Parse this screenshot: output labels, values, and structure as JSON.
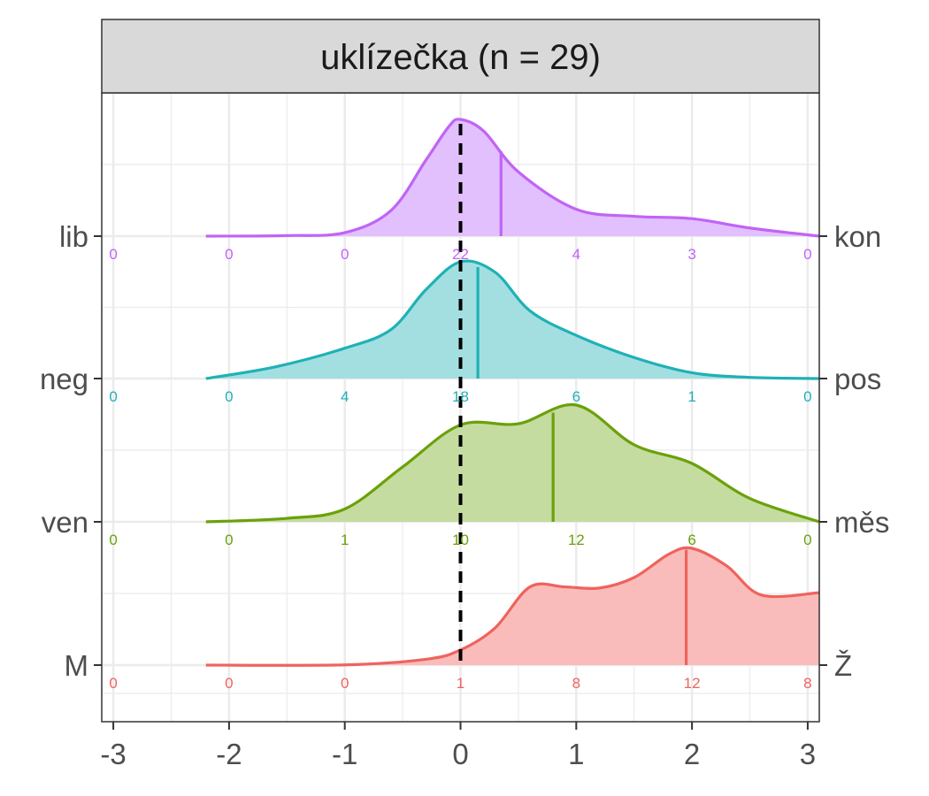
{
  "chart_data": {
    "type": "ridgeline",
    "title": "",
    "facet_label": "uklízečka (n = 29)",
    "xlim": [
      -3.1,
      3.1
    ],
    "x_ticks": [
      -3,
      -2,
      -1,
      0,
      1,
      2,
      3
    ],
    "x_tick_labels": [
      "-3",
      "-2",
      "-1",
      "0",
      "1",
      "2",
      "3"
    ],
    "reference_line_x": 0,
    "grid": true,
    "series": [
      {
        "left_label": "lib",
        "right_label": "kon",
        "color": "#C064F5",
        "fill": "#E2BFFD",
        "median_x": 0.35,
        "density_x": [
          -2.2,
          -1.5,
          -1.0,
          -0.6,
          -0.3,
          -0.1,
          0.0,
          0.2,
          0.5,
          1.0,
          1.5,
          2.0,
          2.5,
          3.1
        ],
        "density_y": [
          0.0,
          0.005,
          0.03,
          0.22,
          0.65,
          0.94,
          1.0,
          0.9,
          0.55,
          0.23,
          0.17,
          0.15,
          0.07,
          0.0
        ],
        "count_x": [
          -3,
          -2,
          -1,
          0,
          1,
          2,
          3
        ],
        "counts": [
          "0",
          "0",
          "0",
          "22",
          "4",
          "3",
          "0"
        ]
      },
      {
        "left_label": "neg",
        "right_label": "pos",
        "color": "#1FB1B6",
        "fill": "#A3DFE1",
        "median_x": 0.15,
        "density_x": [
          -2.2,
          -1.6,
          -1.0,
          -0.6,
          -0.3,
          0.0,
          0.3,
          0.6,
          1.0,
          1.5,
          2.0,
          2.5,
          3.1
        ],
        "density_y": [
          0.0,
          0.1,
          0.26,
          0.42,
          0.76,
          1.0,
          0.91,
          0.58,
          0.37,
          0.18,
          0.05,
          0.01,
          0.0
        ],
        "count_x": [
          -3,
          -2,
          -1,
          0,
          1,
          2,
          3
        ],
        "counts": [
          "0",
          "0",
          "4",
          "18",
          "6",
          "1",
          "0"
        ]
      },
      {
        "left_label": "ven",
        "right_label": "měs",
        "color": "#6BA10A",
        "fill": "#C5DCA0",
        "median_x": 0.8,
        "density_x": [
          -2.2,
          -1.5,
          -1.0,
          -0.5,
          0.0,
          0.5,
          1.0,
          1.5,
          2.0,
          2.5,
          3.1
        ],
        "density_y": [
          0.0,
          0.03,
          0.11,
          0.47,
          0.83,
          0.84,
          1.0,
          0.66,
          0.5,
          0.2,
          0.0
        ],
        "count_x": [
          -3,
          -2,
          -1,
          0,
          1,
          2,
          3
        ],
        "counts": [
          "0",
          "0",
          "1",
          "10",
          "12",
          "6",
          "0"
        ]
      },
      {
        "left_label": "M",
        "right_label": "Ž",
        "color": "#EF635E",
        "fill": "#F9BCBA",
        "median_x": 1.95,
        "density_x": [
          -2.2,
          -1.0,
          -0.3,
          0.0,
          0.3,
          0.6,
          0.9,
          1.2,
          1.5,
          1.8,
          2.0,
          2.3,
          2.6,
          3.1
        ],
        "density_y": [
          0.0,
          0.002,
          0.05,
          0.13,
          0.32,
          0.67,
          0.67,
          0.66,
          0.75,
          0.95,
          1.0,
          0.85,
          0.6,
          0.62
        ],
        "count_x": [
          -3,
          -2,
          -1,
          0,
          1,
          2,
          3
        ],
        "counts": [
          "0",
          "0",
          "0",
          "1",
          "8",
          "12",
          "8"
        ]
      }
    ]
  }
}
